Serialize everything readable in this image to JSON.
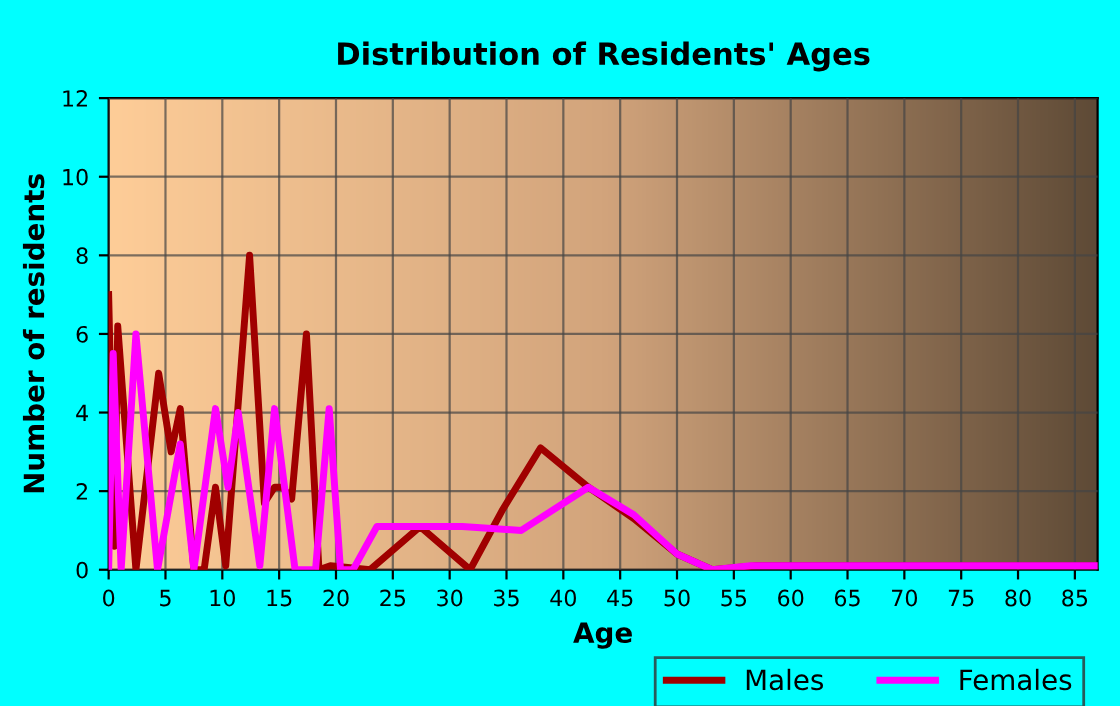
{
  "chart_data": {
    "type": "line",
    "title": "Distribution of Residents' Ages",
    "xlabel": "Age",
    "ylabel": "Number of residents",
    "xlim": [
      0,
      87
    ],
    "ylim": [
      0,
      12
    ],
    "xticks": [
      0,
      5,
      10,
      15,
      20,
      25,
      30,
      35,
      40,
      45,
      50,
      55,
      60,
      65,
      70,
      75,
      80,
      85
    ],
    "yticks": [
      0,
      2,
      4,
      6,
      8,
      10,
      12
    ],
    "grid": true,
    "legend": "bottom right",
    "marker": "none",
    "line_style": "solid",
    "series": [
      {
        "name": "Males",
        "color": "#a00000",
        "x": [
          0,
          0.5,
          0.8,
          2.4,
          4.4,
          5.5,
          6.3,
          7.5,
          8.4,
          9.4,
          10.3,
          12.4,
          13.7,
          14.6,
          15.3,
          16.1,
          17.4,
          18.5,
          19.5,
          23,
          27.4,
          31.8,
          34.6,
          38,
          42.2,
          46.2,
          50,
          53.1,
          57,
          87
        ],
        "values": [
          7,
          0.6,
          6.2,
          0,
          5,
          3,
          4.1,
          0,
          0,
          2.1,
          0.1,
          8,
          1.7,
          2.1,
          2.1,
          1.8,
          6,
          0,
          0.1,
          0,
          1.1,
          0,
          1.5,
          3.1,
          2.1,
          1.3,
          0.4,
          0,
          0.1,
          0.1
        ]
      },
      {
        "name": "Females",
        "color": "#ff00ff",
        "x": [
          0,
          0.4,
          1.1,
          2.4,
          4.3,
          6.3,
          7.5,
          9.4,
          10.5,
          11.4,
          13.3,
          14.6,
          16.4,
          18.2,
          19.4,
          20.4,
          21.5,
          23.6,
          25.3,
          31.1,
          36.3,
          42.2,
          46.2,
          50,
          53.1,
          56.5,
          87
        ],
        "values": [
          0,
          5.5,
          0,
          6,
          0,
          3.2,
          0,
          4.1,
          2.1,
          4,
          0.1,
          4.1,
          0,
          0,
          4.1,
          0,
          0,
          1.1,
          1.1,
          1.1,
          1,
          2.1,
          1.4,
          0.4,
          0,
          0.1,
          0.1
        ]
      }
    ]
  }
}
